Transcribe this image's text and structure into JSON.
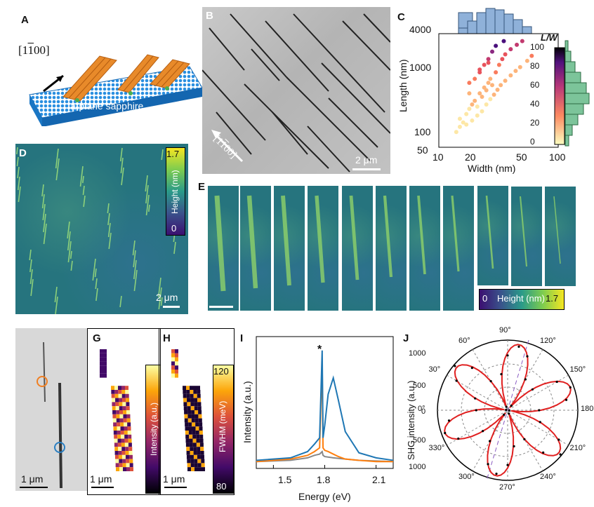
{
  "panels": {
    "A": {
      "label": "A",
      "direction": "[1̅1̅00]",
      "direction_text": "[1",
      "dir_bar": "1",
      "dir_rest": "00]",
      "substrate": "a-plane sapphire"
    },
    "B": {
      "label": "B",
      "direction_text": "[1",
      "dir_bar": "1",
      "dir_rest": "00]",
      "scale": "2 μm"
    },
    "C": {
      "label": "C",
      "ylabel": "Length (nm)",
      "xlabel": "Width (nm)",
      "yticks": [
        "4000",
        "1000",
        "100",
        "50"
      ],
      "xticks": [
        "10",
        "20",
        "50",
        "100"
      ],
      "cbar_title": "L/W",
      "cbar_ticks": [
        "100",
        "80",
        "60",
        "40",
        "20",
        "0"
      ]
    },
    "D": {
      "label": "D",
      "cbar_max": "1.7",
      "cbar_min": "0",
      "cbar_title": "Height (nm)",
      "scale": "2 μm"
    },
    "E": {
      "label": "E",
      "cbar_min": "0",
      "cbar_title": "Height (nm)",
      "cbar_max": "1.7"
    },
    "F": {
      "label": "F",
      "scale": "1 μm"
    },
    "G": {
      "label": "G",
      "cbar_title": "Intensity (a.u.)",
      "scale": "1 μm"
    },
    "H": {
      "label": "H",
      "cbar_title": "FWHM (meV)",
      "cbar_max": "120",
      "cbar_min": "80",
      "scale": "1 μm"
    },
    "I": {
      "label": "I",
      "xlabel": "Energy (eV)",
      "ylabel": "Intensity (a.u.)",
      "xticks": [
        "1.5",
        "1.8",
        "2.1"
      ],
      "peak_mark": "*"
    },
    "J": {
      "label": "J",
      "ylabel": "SHG intensity (a.u.)",
      "radial_ticks": [
        "1000",
        "500",
        "0",
        "500",
        "1000"
      ],
      "angles": [
        "90°",
        "120°",
        "150°",
        "180°",
        "210°",
        "240°",
        "270°",
        "300°",
        "330°",
        "0°",
        "30°",
        "60°"
      ]
    }
  },
  "chart_data": [
    {
      "type": "scatter",
      "title": "",
      "xlabel": "Width (nm)",
      "ylabel": "Length (nm)",
      "x_scale": "log",
      "y_scale": "log",
      "xlim": [
        10,
        100
      ],
      "ylim": [
        50,
        4000
      ],
      "color_by": "L/W",
      "points": [
        [
          15,
          150
        ],
        [
          16,
          130
        ],
        [
          17,
          180
        ],
        [
          18,
          220
        ],
        [
          19,
          260
        ],
        [
          20,
          300
        ],
        [
          21,
          240
        ],
        [
          22,
          400
        ],
        [
          23,
          350
        ],
        [
          24,
          500
        ],
        [
          25,
          450
        ],
        [
          26,
          600
        ],
        [
          27,
          700
        ],
        [
          28,
          550
        ],
        [
          30,
          900
        ],
        [
          32,
          1200
        ],
        [
          34,
          1500
        ],
        [
          36,
          1800
        ],
        [
          40,
          2200
        ],
        [
          45,
          2600
        ],
        [
          50,
          3000
        ],
        [
          18,
          400
        ],
        [
          20,
          700
        ],
        [
          22,
          900
        ],
        [
          24,
          1200
        ],
        [
          26,
          1500
        ],
        [
          28,
          2000
        ],
        [
          30,
          2500
        ],
        [
          35,
          3000
        ],
        [
          14,
          90
        ],
        [
          15,
          110
        ],
        [
          17,
          120
        ],
        [
          19,
          140
        ],
        [
          21,
          170
        ],
        [
          23,
          200
        ],
        [
          25,
          260
        ],
        [
          27,
          320
        ],
        [
          29,
          380
        ],
        [
          31,
          460
        ],
        [
          33,
          550
        ],
        [
          36,
          650
        ],
        [
          40,
          800
        ],
        [
          44,
          950
        ],
        [
          48,
          1100
        ],
        [
          55,
          1400
        ],
        [
          60,
          1700
        ],
        [
          22,
          1000
        ],
        [
          26,
          1300
        ],
        [
          18,
          600
        ]
      ]
    },
    {
      "type": "line",
      "title": "",
      "xlabel": "Energy (eV)",
      "ylabel": "Intensity (a.u.)",
      "xlim": [
        1.4,
        2.2
      ],
      "series": [
        {
          "color": "#1f77b4",
          "x": [
            1.4,
            1.6,
            1.7,
            1.74,
            1.77,
            1.785,
            1.79,
            1.8,
            1.82,
            1.85,
            1.88,
            1.92,
            2.0,
            2.1,
            2.2
          ],
          "y": [
            2,
            4,
            9,
            15,
            20,
            90,
            20,
            30,
            55,
            68,
            50,
            25,
            8,
            4,
            2
          ]
        },
        {
          "color": "#ff7f0e",
          "x": [
            1.4,
            1.6,
            1.7,
            1.74,
            1.77,
            1.785,
            1.79,
            1.8,
            1.82,
            1.85,
            1.88,
            1.92,
            2.0,
            2.1,
            2.2
          ],
          "y": [
            1,
            3,
            6,
            9,
            12,
            80,
            12,
            10,
            9,
            7,
            5,
            3,
            2,
            1,
            1
          ]
        },
        {
          "color": "#888888",
          "x": [
            1.4,
            1.6,
            1.7,
            1.74,
            1.77,
            1.785,
            1.79,
            1.8,
            1.85,
            1.92,
            2.0,
            2.2
          ],
          "y": [
            1,
            2,
            4,
            6,
            7,
            9,
            6,
            5,
            4,
            3,
            2,
            1
          ]
        }
      ]
    }
  ]
}
